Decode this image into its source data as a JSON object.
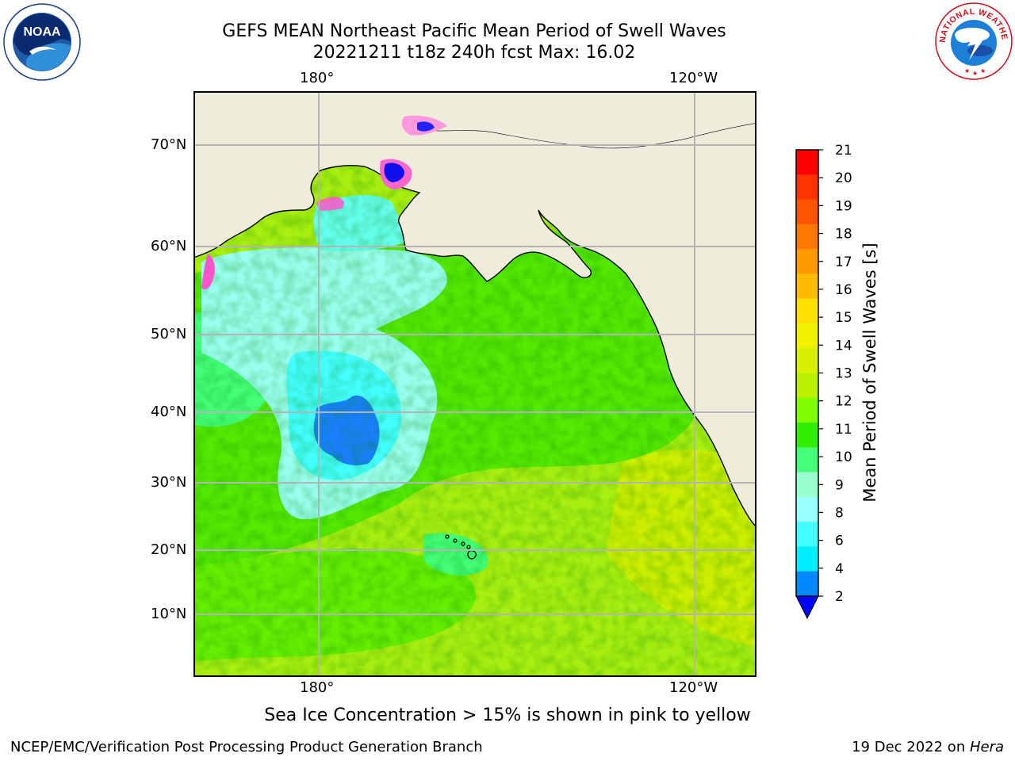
{
  "header": {
    "title_line1": "GEFS MEAN Northeast Pacific Mean Period of Swell Waves",
    "title_line2": "20221211 t18z 240h fcst   Max: 16.02"
  },
  "logos": {
    "left": {
      "name": "NOAA",
      "ring_text": "NATIONAL OCEANIC AND ATMOSPHERIC ADMINISTRATION • U.S. DEPARTMENT OF COMMERCE"
    },
    "right": {
      "name": "NATIONAL WEATHER SERVICE",
      "ring_text": "NATIONAL WEATHER SERVICE"
    }
  },
  "map": {
    "lon_labels_top": [
      "180°",
      "120°W"
    ],
    "lon_labels_bottom": [
      "180°",
      "120°W"
    ],
    "lat_labels": [
      "70°N",
      "60°N",
      "50°N",
      "40°N",
      "30°N",
      "20°N",
      "10°N"
    ],
    "colors": {
      "land": "#efecdc",
      "coast": "#000000",
      "grid": "#b4b4b4",
      "ice": "#ff55cc"
    }
  },
  "colorbar": {
    "title": "Mean Period of Swell Waves [s]",
    "labels": [
      "21",
      "20",
      "19",
      "18",
      "17",
      "16",
      "15",
      "14",
      "13",
      "12",
      "11",
      "10",
      "9",
      "8",
      "6",
      "4",
      "2"
    ],
    "colors_top_to_bottom": [
      "#ff0000",
      "#ff3300",
      "#ff5500",
      "#ff7700",
      "#ff9900",
      "#ffbb00",
      "#ffe000",
      "#f0f000",
      "#d8f000",
      "#b8f000",
      "#80ff00",
      "#33ee00",
      "#44ff77",
      "#99ffcc",
      "#99ffff",
      "#44ffff",
      "#00eeff",
      "#0088ff"
    ],
    "extend_min_color": "#0000ff"
  },
  "caption": "Sea Ice Concentration > 15% is shown in pink to yellow",
  "footer": {
    "left": "NCEP/EMC/Verification Post Processing Product Generation Branch",
    "right_date": "19 Dec 2022 on ",
    "right_machine": "Hera"
  }
}
